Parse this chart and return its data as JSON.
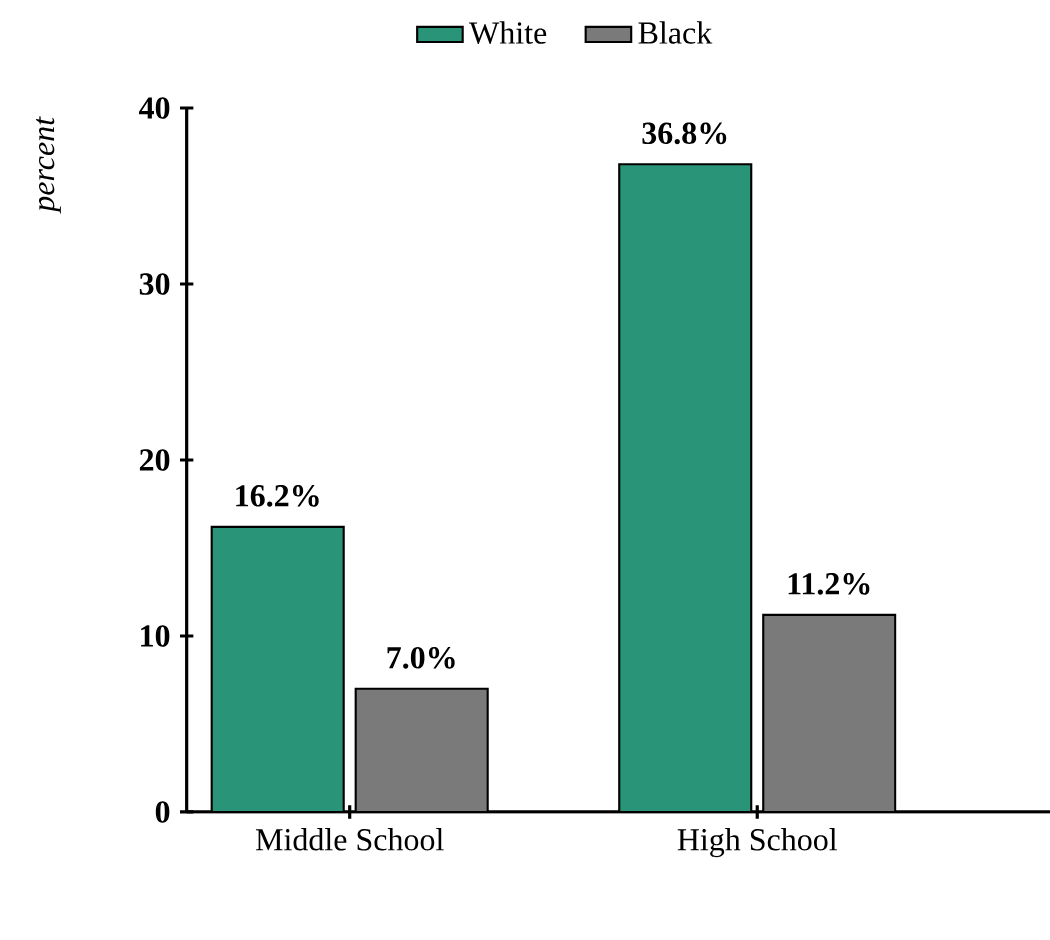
{
  "chart_data": {
    "type": "bar",
    "ylabel": "percent",
    "categories": [
      "Middle School",
      "High School"
    ],
    "series": [
      {
        "name": "White",
        "color": "#2a9478",
        "values": [
          16.2,
          36.8
        ],
        "value_labels": [
          "16.2%",
          "36.8%"
        ]
      },
      {
        "name": "Black",
        "color": "#7a7a7a",
        "values": [
          7.0,
          11.2
        ],
        "value_labels": [
          "7.0%",
          "11.2%"
        ]
      }
    ],
    "ylim": [
      0,
      40
    ],
    "yticks": [
      0,
      10,
      20,
      30,
      40
    ],
    "grid": false,
    "legend": "top"
  }
}
